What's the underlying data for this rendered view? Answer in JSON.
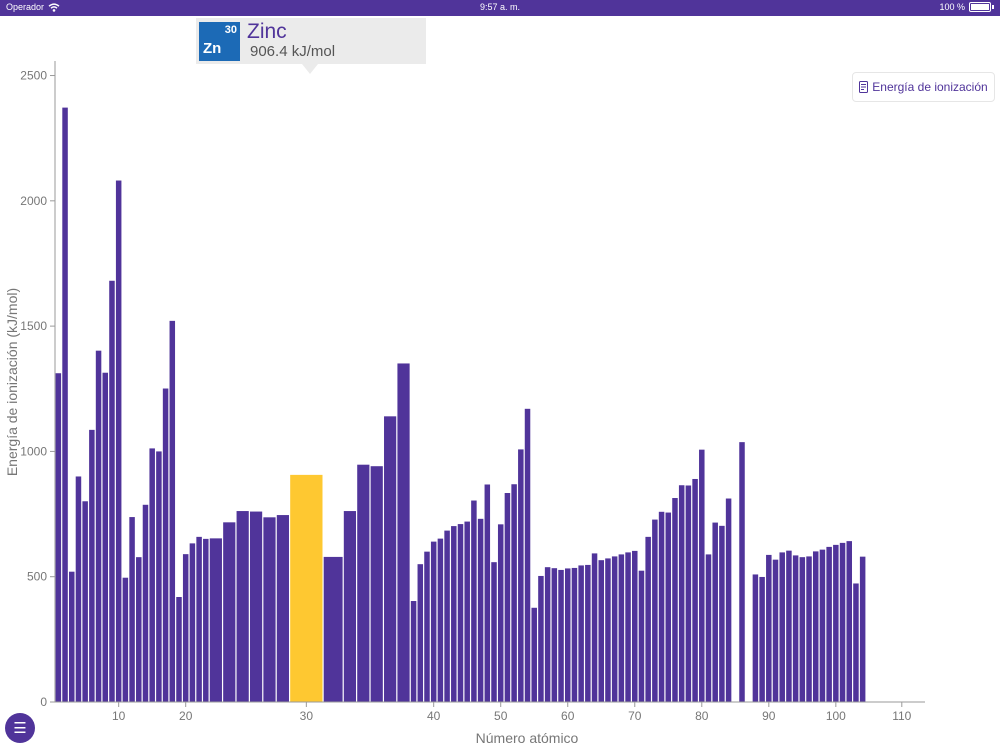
{
  "status_bar": {
    "carrier": "Operador",
    "time": "9:57 a. m.",
    "battery": "100 %"
  },
  "tooltip": {
    "atomic_number": "30",
    "symbol": "Zn",
    "name": "Zinc",
    "value": "906.4 kJ/mol",
    "tile_color": "#1c6ab6"
  },
  "metric_button": {
    "label": "Energía de ionización",
    "icon": "periodic-table-icon"
  },
  "menu_button": {
    "icon": "menu-icon"
  },
  "colors": {
    "bar": "#50349a",
    "highlight": "#fec831",
    "accent": "#50349a"
  },
  "chart_data": {
    "type": "bar",
    "title": "",
    "xlabel": "Número atómico",
    "ylabel": "Energía de ionización (kJ/mol)",
    "ylim": [
      0,
      2550
    ],
    "xlim": [
      0.5,
      113
    ],
    "yticks": [
      0,
      500,
      1000,
      1500,
      2000,
      2500
    ],
    "xticks": [
      10,
      20,
      30,
      40,
      50,
      60,
      70,
      80,
      90,
      100,
      110
    ],
    "grid": false,
    "highlighted_element": 30,
    "atomic_numbers": [
      1,
      2,
      3,
      4,
      5,
      6,
      7,
      8,
      9,
      10,
      11,
      12,
      13,
      14,
      15,
      16,
      17,
      18,
      19,
      20,
      21,
      22,
      23,
      24,
      25,
      26,
      27,
      28,
      29,
      30,
      31,
      32,
      33,
      34,
      35,
      36,
      37,
      38,
      39,
      40,
      41,
      42,
      43,
      44,
      45,
      46,
      47,
      48,
      49,
      50,
      51,
      52,
      53,
      54,
      55,
      56,
      57,
      58,
      59,
      60,
      61,
      62,
      63,
      64,
      65,
      66,
      67,
      68,
      69,
      70,
      71,
      72,
      73,
      74,
      75,
      76,
      77,
      78,
      79,
      80,
      81,
      82,
      83,
      84,
      85,
      86,
      87,
      88,
      89,
      90,
      91,
      92,
      93,
      94,
      95,
      96,
      97,
      98,
      99,
      100,
      101,
      102,
      103,
      104
    ],
    "values": [
      1312,
      2372,
      520,
      900,
      801,
      1086,
      1402,
      1314,
      1681,
      2081,
      496,
      738,
      578,
      787,
      1012,
      1000,
      1251,
      1521,
      419,
      590,
      633,
      659,
      651,
      653,
      717,
      762,
      760,
      737,
      746,
      906.4,
      579,
      762,
      947,
      941,
      1140,
      1351,
      403,
      550,
      600,
      640,
      652,
      684,
      702,
      710,
      720,
      804,
      731,
      868,
      558,
      709,
      834,
      869,
      1008,
      1170,
      376,
      503,
      538,
      534,
      527,
      533,
      535,
      545,
      547,
      593,
      566,
      573,
      581,
      589,
      597,
      603,
      524,
      659,
      728,
      759,
      756,
      814,
      865,
      864,
      890,
      1007,
      589,
      716,
      703,
      812,
      0,
      1037,
      0,
      509,
      499,
      587,
      568,
      597,
      604,
      585,
      578,
      581,
      601,
      608,
      619,
      627,
      635,
      642,
      473,
      580
    ],
    "bar_widths": [
      1,
      1,
      1,
      1,
      1,
      1,
      1,
      1,
      1,
      1,
      1,
      1,
      1,
      1,
      1,
      1,
      1,
      1,
      1,
      1,
      1,
      1,
      1,
      2,
      2,
      2,
      2,
      2,
      2,
      5,
      3,
      2,
      2,
      2,
      2,
      2,
      1,
      1,
      1,
      1,
      1,
      1,
      1,
      1,
      1,
      1,
      1,
      1,
      1,
      1,
      1,
      1,
      1,
      1,
      1,
      1,
      1,
      1,
      1,
      1,
      1,
      1,
      1,
      1,
      1,
      1,
      1,
      1,
      1,
      1,
      1,
      1,
      1,
      1,
      1,
      1,
      1,
      1,
      1,
      1,
      1,
      1,
      1,
      1,
      1,
      1,
      1,
      1,
      1,
      1,
      1,
      1,
      1,
      1,
      1,
      1,
      1,
      1,
      1,
      1,
      1,
      1,
      1,
      1
    ]
  }
}
